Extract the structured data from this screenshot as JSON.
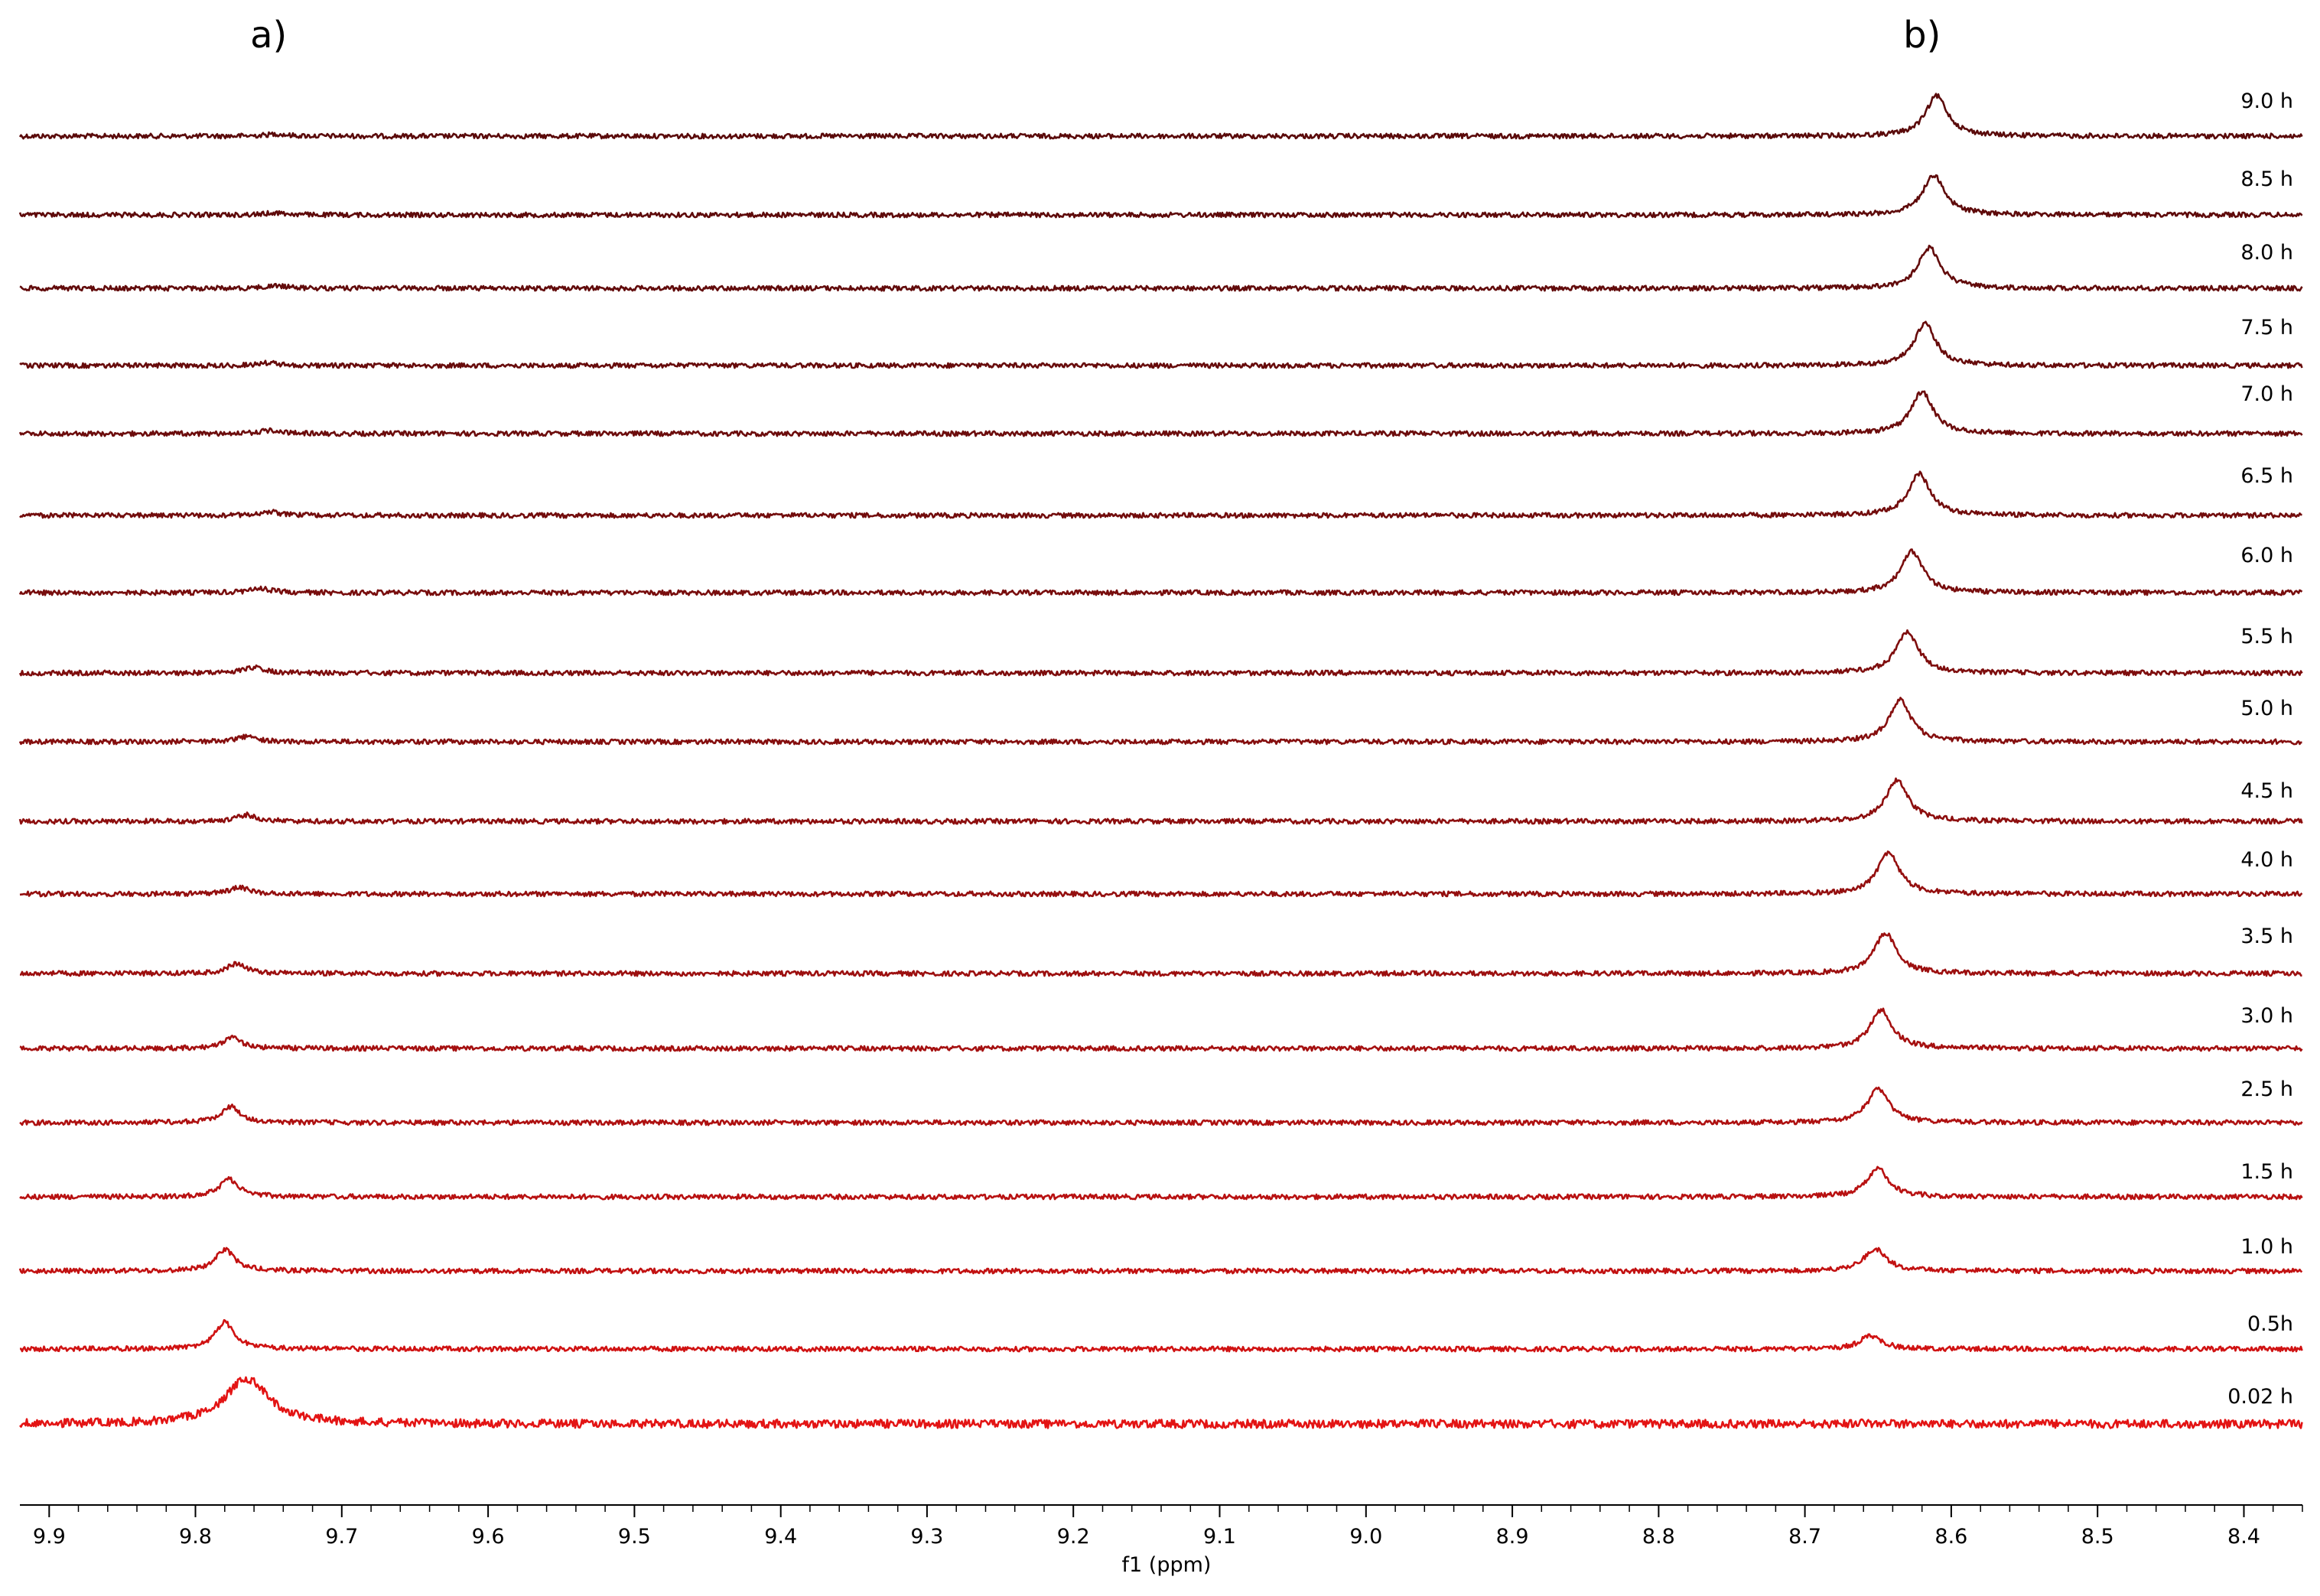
{
  "chart_data": {
    "type": "line",
    "title": "",
    "xlabel": "f1 (ppm)",
    "ylabel": "",
    "xlim": [
      9.92,
      8.36
    ],
    "x_reversed": true,
    "grid": false,
    "legend": "none",
    "panel_labels": [
      {
        "text": "a)",
        "x_ppm": 9.75
      },
      {
        "text": "b)",
        "x_ppm": 8.62
      }
    ],
    "x_ticks": [
      {
        "value": 9.9,
        "label": "9.9"
      },
      {
        "value": 9.8,
        "label": "9.8"
      },
      {
        "value": 9.7,
        "label": "9.7"
      },
      {
        "value": 9.6,
        "label": "9.6"
      },
      {
        "value": 9.5,
        "label": "9.5"
      },
      {
        "value": 9.4,
        "label": "9.4"
      },
      {
        "value": 9.3,
        "label": "9.3"
      },
      {
        "value": 9.2,
        "label": "9.2"
      },
      {
        "value": 9.1,
        "label": "9.1"
      },
      {
        "value": 9.0,
        "label": "9.0"
      },
      {
        "value": 8.9,
        "label": "8.9"
      },
      {
        "value": 8.8,
        "label": "8.8"
      },
      {
        "value": 8.7,
        "label": "8.7"
      },
      {
        "value": 8.6,
        "label": "8.6"
      },
      {
        "value": 8.5,
        "label": "8.5"
      },
      {
        "value": 8.4,
        "label": "8.4"
      }
    ],
    "series": [
      {
        "name": "9.0 h",
        "color": "#5a0a0a",
        "peak_a_ppm": 9.745,
        "peak_a_height": 0.04,
        "peak_b_ppm": 8.61,
        "peak_b_height": 0.75
      },
      {
        "name": "8.5 h",
        "color": "#5e0a0a",
        "peak_a_ppm": 9.745,
        "peak_a_height": 0.04,
        "peak_b_ppm": 8.612,
        "peak_b_height": 0.75
      },
      {
        "name": "8.0 h",
        "color": "#620b0b",
        "peak_a_ppm": 9.745,
        "peak_a_height": 0.05,
        "peak_b_ppm": 8.615,
        "peak_b_height": 0.76
      },
      {
        "name": "7.5 h",
        "color": "#670b0b",
        "peak_a_ppm": 9.75,
        "peak_a_height": 0.05,
        "peak_b_ppm": 8.618,
        "peak_b_height": 0.78
      },
      {
        "name": "7.0 h",
        "color": "#6c0c0c",
        "peak_a_ppm": 9.75,
        "peak_a_height": 0.06,
        "peak_b_ppm": 8.62,
        "peak_b_height": 0.78
      },
      {
        "name": "6.5 h",
        "color": "#720c0c",
        "peak_a_ppm": 9.75,
        "peak_a_height": 0.07,
        "peak_b_ppm": 8.622,
        "peak_b_height": 0.78
      },
      {
        "name": "6.0 h",
        "color": "#780d0d",
        "peak_a_ppm": 9.755,
        "peak_a_height": 0.08,
        "peak_b_ppm": 8.627,
        "peak_b_height": 0.78
      },
      {
        "name": "5.5 h",
        "color": "#7e0d0d",
        "peak_a_ppm": 9.76,
        "peak_a_height": 0.1,
        "peak_b_ppm": 8.63,
        "peak_b_height": 0.78
      },
      {
        "name": "5.0 h",
        "color": "#850e0e",
        "peak_a_ppm": 9.765,
        "peak_a_height": 0.1,
        "peak_b_ppm": 8.635,
        "peak_b_height": 0.78
      },
      {
        "name": "4.5 h",
        "color": "#8d0e0e",
        "peak_a_ppm": 9.765,
        "peak_a_height": 0.12,
        "peak_b_ppm": 8.637,
        "peak_b_height": 0.78
      },
      {
        "name": "4.0 h",
        "color": "#940f0f",
        "peak_a_ppm": 9.77,
        "peak_a_height": 0.12,
        "peak_b_ppm": 8.643,
        "peak_b_height": 0.78
      },
      {
        "name": "3.5 h",
        "color": "#9c0f0f",
        "peak_a_ppm": 9.772,
        "peak_a_height": 0.18,
        "peak_b_ppm": 8.645,
        "peak_b_height": 0.76
      },
      {
        "name": "3.0 h",
        "color": "#a51010",
        "peak_a_ppm": 9.775,
        "peak_a_height": 0.2,
        "peak_b_ppm": 8.648,
        "peak_b_height": 0.72
      },
      {
        "name": "2.5 h",
        "color": "#ae1010",
        "peak_a_ppm": 9.776,
        "peak_a_height": 0.3,
        "peak_b_ppm": 8.65,
        "peak_b_height": 0.62
      },
      {
        "name": "1.5 h",
        "color": "#b81111",
        "peak_a_ppm": 9.777,
        "peak_a_height": 0.33,
        "peak_b_ppm": 8.65,
        "peak_b_height": 0.52
      },
      {
        "name": "1.0 h",
        "color": "#c21111",
        "peak_a_ppm": 9.78,
        "peak_a_height": 0.4,
        "peak_b_ppm": 8.652,
        "peak_b_height": 0.42
      },
      {
        "name": "0.5h",
        "color": "#d01212",
        "peak_a_ppm": 9.78,
        "peak_a_height": 0.5,
        "peak_b_ppm": 8.655,
        "peak_b_height": 0.25
      },
      {
        "name": "0.02 h",
        "color": "#e31414",
        "peak_a_ppm": 9.765,
        "peak_a_height": 0.85,
        "peak_b_ppm": 8.66,
        "peak_b_height": 0.02
      }
    ]
  }
}
